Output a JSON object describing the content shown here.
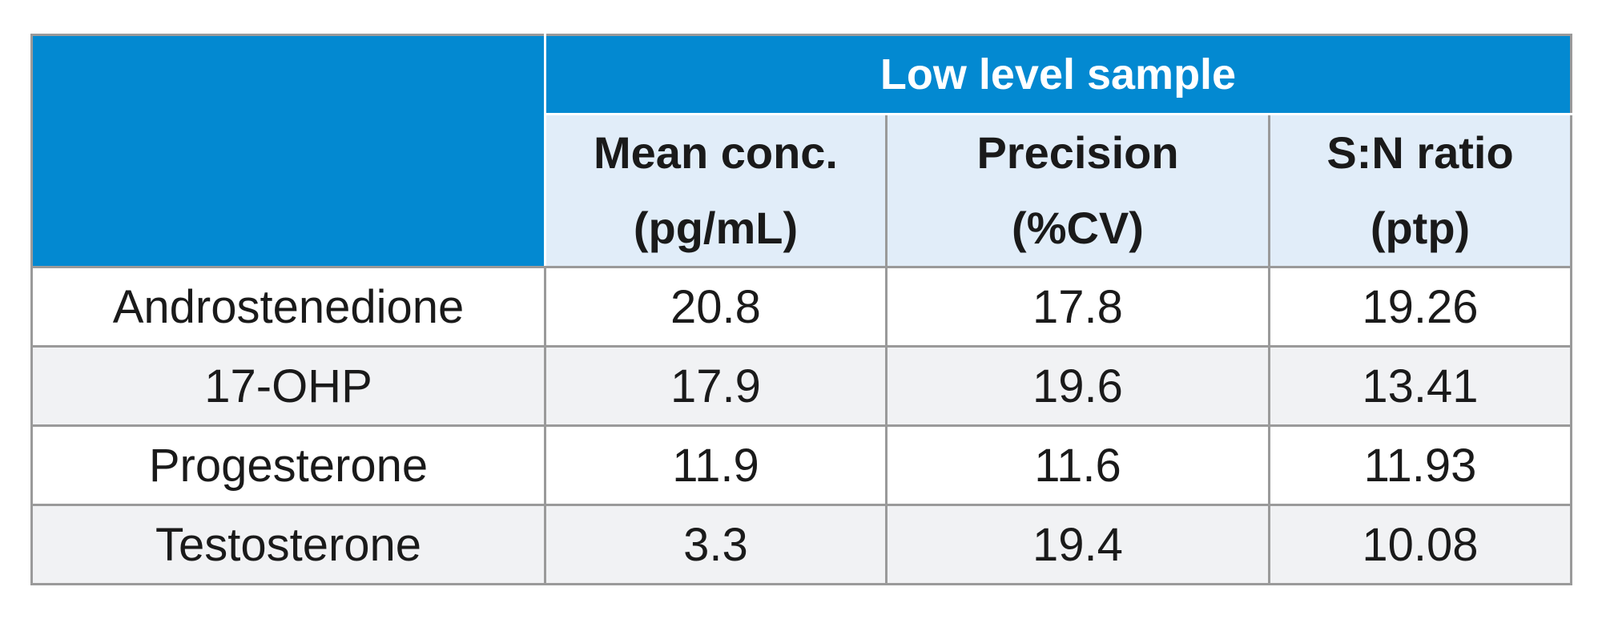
{
  "table": {
    "group_header": "Low level sample",
    "columns": [
      {
        "line1": "Mean conc.",
        "line2": "(pg/mL)"
      },
      {
        "line1": "Precision",
        "line2": "(%CV)"
      },
      {
        "line1": "S:N ratio",
        "line2": "(ptp)"
      }
    ],
    "rows": [
      {
        "name": "Androstenedione",
        "cells": [
          "20.8",
          "17.8",
          "19.26"
        ]
      },
      {
        "name": "17-OHP",
        "cells": [
          "17.9",
          "19.6",
          "13.41"
        ]
      },
      {
        "name": "Progesterone",
        "cells": [
          "11.9",
          "11.6",
          "11.93"
        ]
      },
      {
        "name": "Testosterone",
        "cells": [
          "3.3",
          "19.4",
          "10.08"
        ]
      }
    ],
    "colors": {
      "header_blue": "#0389d1",
      "subheader_bg": "#e1edf9",
      "row_alt_bg": "#f1f2f4",
      "border": "#9a9a9a"
    }
  }
}
